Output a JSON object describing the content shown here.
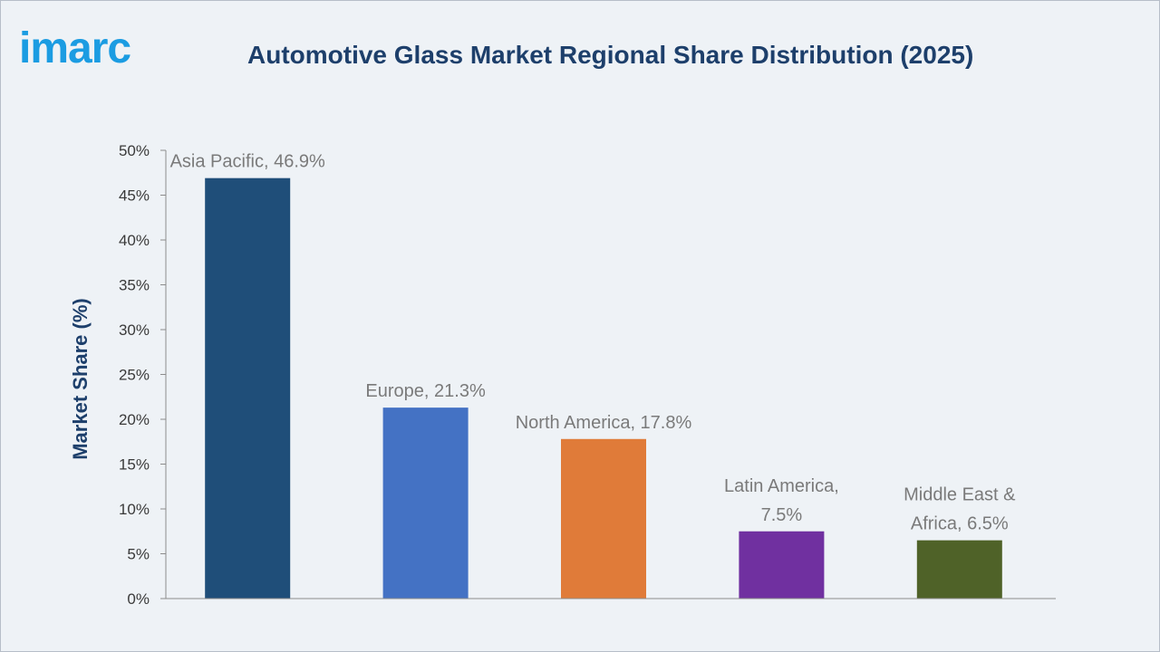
{
  "logo": {
    "text": "imarc"
  },
  "chart_data": {
    "type": "bar",
    "title": "Automotive Glass Market Regional Share Distribution (2025)",
    "xlabel": "",
    "ylabel": "Market Share (%)",
    "ylim": [
      0,
      50
    ],
    "yticks": [
      "0%",
      "5%",
      "10%",
      "15%",
      "20%",
      "25%",
      "30%",
      "35%",
      "40%",
      "45%",
      "50%"
    ],
    "categories": [
      "Asia Pacific",
      "Europe",
      "North America",
      "Latin America",
      "Middle East & Africa"
    ],
    "values": [
      46.9,
      21.3,
      17.8,
      7.5,
      6.5
    ],
    "data_labels": [
      [
        "Asia Pacific, 46.9%"
      ],
      [
        "Europe, 21.3%"
      ],
      [
        "North America, 17.8%"
      ],
      [
        "Latin America,",
        "7.5%"
      ],
      [
        "Middle East &",
        "Africa, 6.5%"
      ]
    ],
    "colors": [
      "#1f4e79",
      "#4472c4",
      "#e07b39",
      "#7030a0",
      "#4f6228"
    ],
    "grid": false,
    "legend": "none"
  }
}
